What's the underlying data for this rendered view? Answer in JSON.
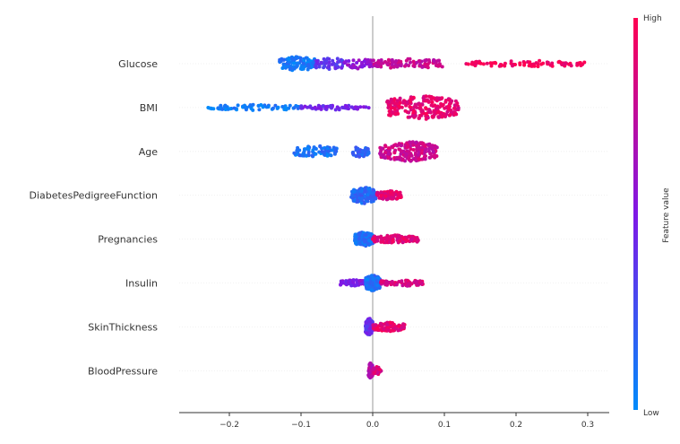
{
  "chart_data": {
    "type": "scatter",
    "subtype": "shap-beeswarm-summary",
    "title": "",
    "xlabel": "",
    "ylabel": "",
    "xlim": [
      -0.27,
      0.33
    ],
    "xticks": [
      -0.2,
      -0.1,
      0.0,
      0.1,
      0.2,
      0.3
    ],
    "xtick_labels": [
      "−0.2",
      "−0.1",
      "0.0",
      "0.1",
      "0.2",
      "0.3"
    ],
    "zero_line": true,
    "colorbar": {
      "label": "Feature value",
      "high_label": "High",
      "low_label": "Low",
      "low_color": "#008bfb",
      "mid_color": "#7f18e6",
      "high_color": "#ff0052"
    },
    "features": [
      {
        "name": "Glucose",
        "segments": [
          {
            "min": -0.13,
            "max": -0.08,
            "count": 120,
            "color": 0.08,
            "jitter": 0.32
          },
          {
            "min": -0.08,
            "max": -0.04,
            "count": 45,
            "color": 0.38,
            "jitter": 0.28
          },
          {
            "min": -0.04,
            "max": 0.0,
            "count": 45,
            "color": 0.55,
            "jitter": 0.22
          },
          {
            "min": 0.0,
            "max": 0.1,
            "count": 95,
            "color": 0.78,
            "jitter": 0.22
          },
          {
            "min": 0.13,
            "max": 0.3,
            "count": 85,
            "color": 0.97,
            "jitter": 0.14
          }
        ]
      },
      {
        "name": "BMI",
        "segments": [
          {
            "min": -0.23,
            "max": -0.1,
            "count": 70,
            "color": 0.06,
            "jitter": 0.12
          },
          {
            "min": -0.1,
            "max": -0.005,
            "count": 55,
            "color": 0.45,
            "jitter": 0.1
          },
          {
            "min": 0.02,
            "max": 0.12,
            "count": 220,
            "color": 0.9,
            "jitter": 0.52
          }
        ]
      },
      {
        "name": "Age",
        "segments": [
          {
            "min": -0.11,
            "max": -0.05,
            "count": 80,
            "color": 0.1,
            "jitter": 0.25
          },
          {
            "min": -0.03,
            "max": -0.005,
            "count": 40,
            "color": 0.2,
            "jitter": 0.25
          },
          {
            "min": 0.01,
            "max": 0.09,
            "count": 180,
            "color": 0.8,
            "jitter": 0.45
          }
        ]
      },
      {
        "name": "DiabetesPedigreeFunction",
        "segments": [
          {
            "min": -0.03,
            "max": 0.005,
            "count": 150,
            "color": 0.15,
            "jitter": 0.36
          },
          {
            "min": 0.005,
            "max": 0.04,
            "count": 70,
            "color": 0.88,
            "jitter": 0.2
          }
        ]
      },
      {
        "name": "Pregnancies",
        "segments": [
          {
            "min": -0.025,
            "max": 0.0,
            "count": 150,
            "color": 0.12,
            "jitter": 0.32
          },
          {
            "min": 0.0,
            "max": 0.065,
            "count": 100,
            "color": 0.88,
            "jitter": 0.18
          }
        ]
      },
      {
        "name": "Insulin",
        "segments": [
          {
            "min": -0.045,
            "max": -0.01,
            "count": 60,
            "color": 0.5,
            "jitter": 0.14
          },
          {
            "min": -0.01,
            "max": 0.01,
            "count": 150,
            "color": 0.12,
            "jitter": 0.36
          },
          {
            "min": 0.01,
            "max": 0.07,
            "count": 80,
            "color": 0.85,
            "jitter": 0.14
          }
        ]
      },
      {
        "name": "SkinThickness",
        "segments": [
          {
            "min": -0.01,
            "max": 0.0,
            "count": 110,
            "color": 0.4,
            "jitter": 0.38
          },
          {
            "min": 0.0,
            "max": 0.045,
            "count": 90,
            "color": 0.9,
            "jitter": 0.2
          }
        ]
      },
      {
        "name": "BloodPressure",
        "segments": [
          {
            "min": -0.006,
            "max": 0.0,
            "count": 60,
            "color": 0.7,
            "jitter": 0.34
          },
          {
            "min": 0.0,
            "max": 0.012,
            "count": 40,
            "color": 0.85,
            "jitter": 0.18
          }
        ]
      }
    ]
  }
}
